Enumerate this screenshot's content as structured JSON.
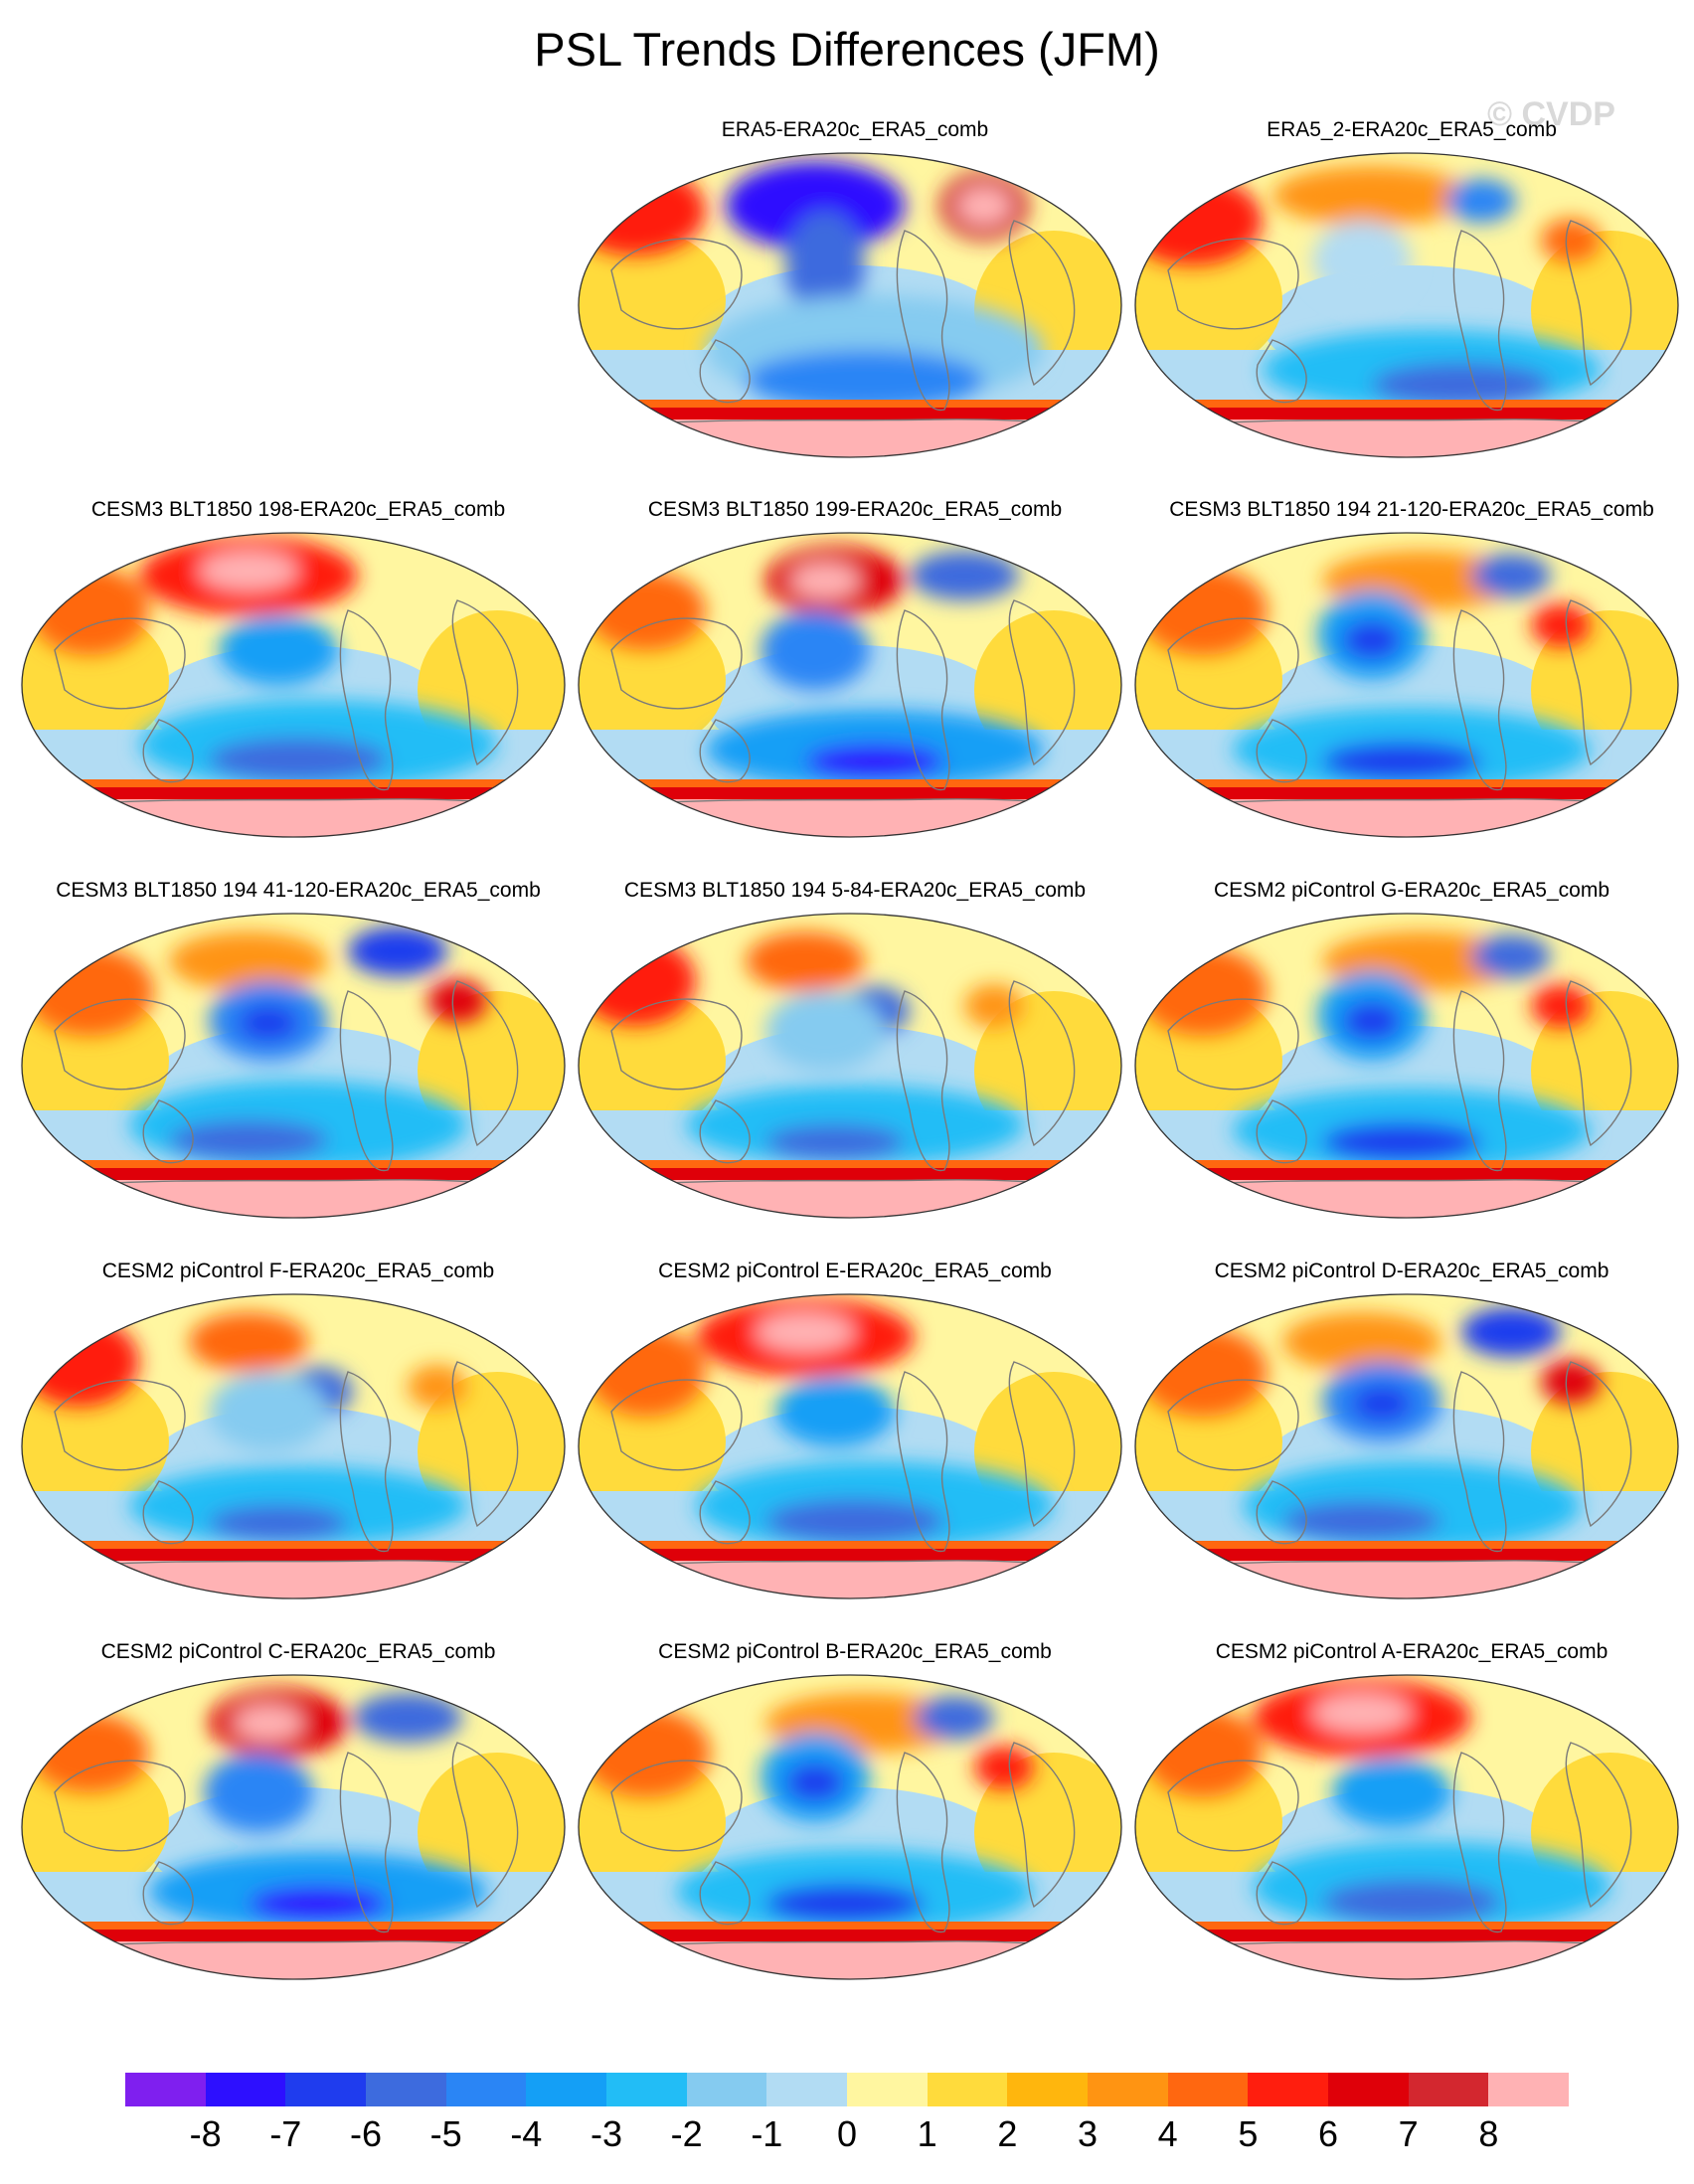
{
  "title": "PSL Trends Differences (JFM)",
  "watermark": "© CVDP",
  "panels": [
    {
      "label": "",
      "empty": true
    },
    {
      "label": "ERA5-ERA20c_ERA5_comb",
      "style": "obs"
    },
    {
      "label": "ERA5_2-ERA20c_ERA5_comb",
      "style": "obs2"
    },
    {
      "label": "CESM3 BLT1850 198-ERA20c_ERA5_comb",
      "style": "warmA"
    },
    {
      "label": "CESM3 BLT1850 199-ERA20c_ERA5_comb",
      "style": "warmB"
    },
    {
      "label": "CESM3 BLT1850 194 21-120-ERA20c_ERA5_comb",
      "style": "mixA"
    },
    {
      "label": "CESM3 BLT1850 194 41-120-ERA20c_ERA5_comb",
      "style": "mixB"
    },
    {
      "label": "CESM3 BLT1850 194 5-84-ERA20c_ERA5_comb",
      "style": "mixC"
    },
    {
      "label": "CESM2 piControl G-ERA20c_ERA5_comb",
      "style": "mixA"
    },
    {
      "label": "CESM2 piControl F-ERA20c_ERA5_comb",
      "style": "mixC"
    },
    {
      "label": "CESM2 piControl E-ERA20c_ERA5_comb",
      "style": "warmA"
    },
    {
      "label": "CESM2 piControl D-ERA20c_ERA5_comb",
      "style": "mixB"
    },
    {
      "label": "CESM2 piControl C-ERA20c_ERA5_comb",
      "style": "warmB"
    },
    {
      "label": "CESM2 piControl B-ERA20c_ERA5_comb",
      "style": "mixA"
    },
    {
      "label": "CESM2 piControl A-ERA20c_ERA5_comb",
      "style": "warmA"
    }
  ],
  "colorbar": {
    "colors": [
      "#7f1fef",
      "#2d0fff",
      "#1f3cee",
      "#3d6bde",
      "#2a85f5",
      "#149ff6",
      "#22bdf6",
      "#85cbf0",
      "#b2dcf3",
      "#fff6a0",
      "#ffdb3c",
      "#ffb60d",
      "#ff9412",
      "#ff6710",
      "#ff1e0e",
      "#df0009",
      "#d3272f",
      "#ffb2b4"
    ],
    "labels": [
      "-8",
      "-7",
      "-6",
      "-5",
      "-4",
      "-3",
      "-2",
      "-1",
      "0",
      "1",
      "2",
      "3",
      "4",
      "5",
      "6",
      "7",
      "8"
    ]
  }
}
